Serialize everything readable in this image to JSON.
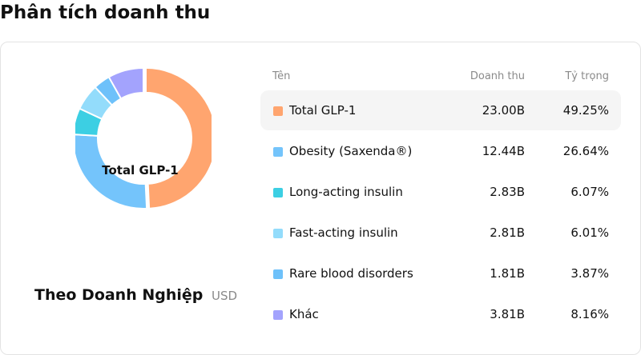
{
  "page": {
    "title": "Phân tích doanh thu"
  },
  "panel": {
    "heading": "Theo Doanh Nghiệp",
    "unit": "USD"
  },
  "table": {
    "headers": {
      "name": "Tên",
      "revenue": "Doanh thu",
      "share": "Tỷ trọng"
    },
    "rows": [
      {
        "name": "Total GLP-1",
        "revenue": "23.00B",
        "share": "49.25%",
        "color": "#ffa56f",
        "highlighted": true
      },
      {
        "name": "Obesity (Saxenda®)",
        "revenue": "12.44B",
        "share": "26.64%",
        "color": "#74c4fb",
        "highlighted": false
      },
      {
        "name": "Long-acting insulin",
        "revenue": "2.83B",
        "share": "6.07%",
        "color": "#3ccfe3",
        "highlighted": false
      },
      {
        "name": "Fast-acting insulin",
        "revenue": "2.81B",
        "share": "6.01%",
        "color": "#93dcfb",
        "highlighted": false
      },
      {
        "name": "Rare blood disorders",
        "revenue": "1.81B",
        "share": "3.87%",
        "color": "#6ec1fa",
        "highlighted": false
      },
      {
        "name": "Khác",
        "revenue": "3.81B",
        "share": "8.16%",
        "color": "#a3a3fd",
        "highlighted": false
      }
    ]
  },
  "chart_data": {
    "type": "pie",
    "donut": true,
    "center_label": "Total GLP-1",
    "categories": [
      "Total GLP-1",
      "Obesity (Saxenda®)",
      "Long-acting insulin",
      "Fast-acting insulin",
      "Rare blood disorders",
      "Khác"
    ],
    "values": [
      49.25,
      26.64,
      6.07,
      6.01,
      3.87,
      8.16
    ],
    "revenue": [
      "23.00B",
      "12.44B",
      "2.83B",
      "2.81B",
      "1.81B",
      "3.81B"
    ],
    "colors": [
      "#ffa56f",
      "#74c4fb",
      "#3ccfe3",
      "#93dcfb",
      "#6ec1fa",
      "#a3a3fd"
    ],
    "highlighted": "Total GLP-1"
  }
}
